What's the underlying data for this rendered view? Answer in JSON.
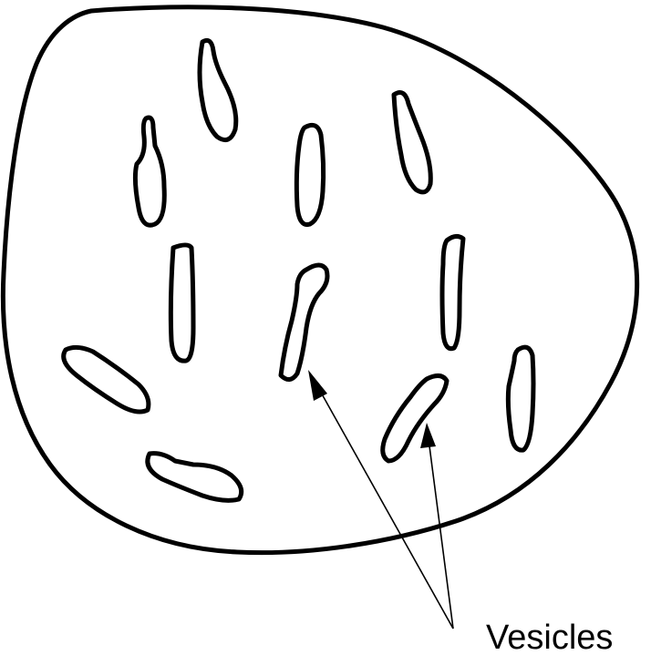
{
  "label": {
    "text": "Vesicles"
  },
  "colors": {
    "stroke": "#000000",
    "background": "#ffffff"
  }
}
